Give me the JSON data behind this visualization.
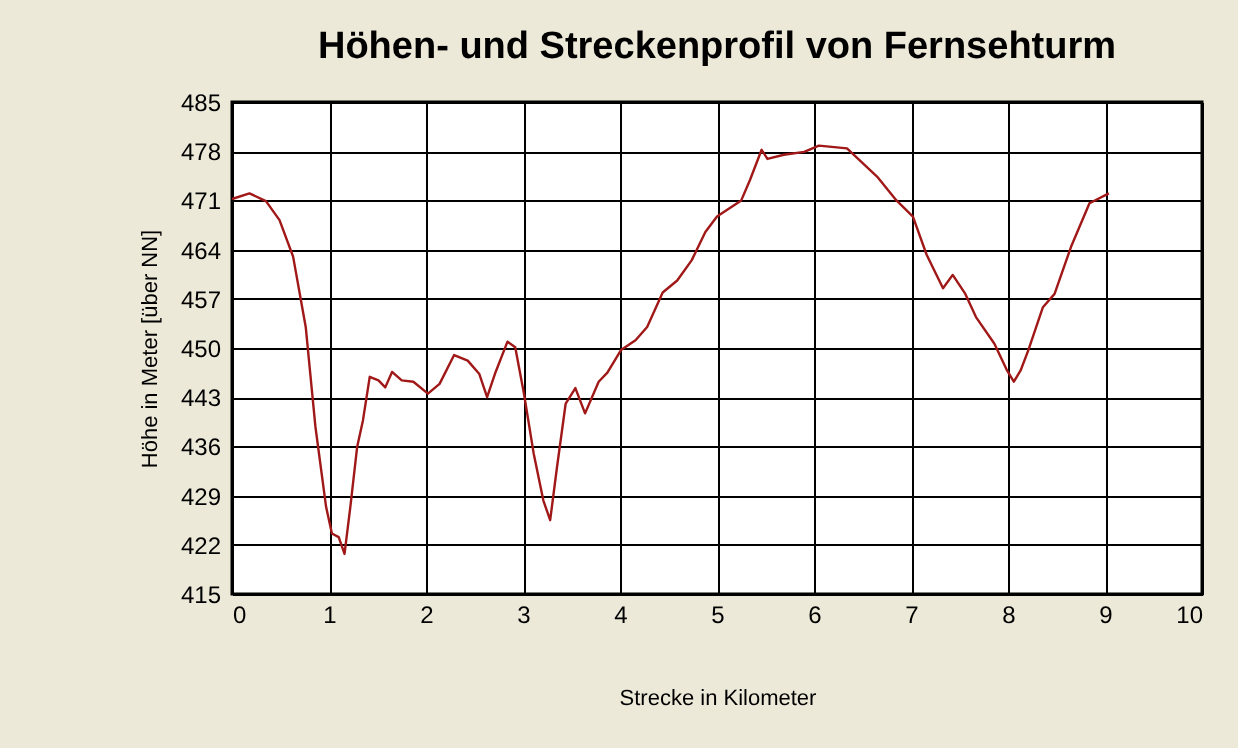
{
  "chart_data": {
    "type": "line",
    "title": "Höhen- und Streckenprofil von Fernsehturm",
    "xlabel": "Strecke in Kilometer",
    "ylabel": "Höhe in Meter [über NN]",
    "xlim": [
      0,
      10
    ],
    "xticks": [
      0,
      1,
      2,
      3,
      4,
      5,
      6,
      7,
      8,
      9,
      10
    ],
    "ylim": [
      415,
      485
    ],
    "yticks": [
      415,
      422,
      429,
      436,
      443,
      450,
      457,
      464,
      471,
      478,
      485
    ],
    "grid": true,
    "marker": "none",
    "line_style": "solid",
    "series": [
      {
        "color": "#a01818",
        "x": [
          0,
          0.18,
          0.35,
          0.49,
          0.63,
          0.76,
          0.86,
          0.97,
          1.03,
          1.1,
          1.16,
          1.22,
          1.29,
          1.35,
          1.42,
          1.51,
          1.58,
          1.65,
          1.75,
          1.87,
          2.02,
          2.14,
          2.29,
          2.43,
          2.55,
          2.63,
          2.71,
          2.84,
          2.92,
          3.01,
          3.11,
          3.21,
          3.28,
          3.35,
          3.44,
          3.54,
          3.64,
          3.78,
          3.87,
          4.01,
          4.16,
          4.28,
          4.44,
          4.59,
          4.74,
          4.88,
          5.0,
          5.25,
          5.34,
          5.46,
          5.52,
          5.69,
          5.9,
          6.05,
          6.34,
          6.65,
          6.85,
          7.02,
          7.16,
          7.33,
          7.43,
          7.56,
          7.67,
          7.86,
          7.99,
          8.06,
          8.13,
          8.21,
          8.36,
          8.48,
          8.65,
          8.84,
          9.04
        ],
        "values": [
          471.2,
          472,
          470.9,
          468.2,
          463,
          453,
          438.8,
          427.4,
          423.6,
          423.1,
          420.7,
          427.4,
          435.9,
          439.7,
          445.9,
          445.4,
          444.4,
          446.6,
          445.4,
          445.2,
          443.5,
          444.9,
          449,
          448.2,
          446.3,
          443,
          446.3,
          450.9,
          450.1,
          443.5,
          435,
          428.3,
          425.5,
          433,
          442.1,
          444.3,
          440.7,
          445.2,
          446.5,
          449.7,
          451.1,
          453,
          457.9,
          459.6,
          462.5,
          466.5,
          468.7,
          471,
          473.9,
          478.2,
          476.9,
          477.5,
          477.9,
          478.8,
          478.4,
          474.4,
          471,
          468.7,
          463.3,
          458.5,
          460.4,
          457.7,
          454.4,
          450.6,
          446.8,
          445.2,
          446.8,
          449.7,
          455.8,
          457.7,
          464.4,
          470.6,
          472
        ]
      }
    ]
  }
}
